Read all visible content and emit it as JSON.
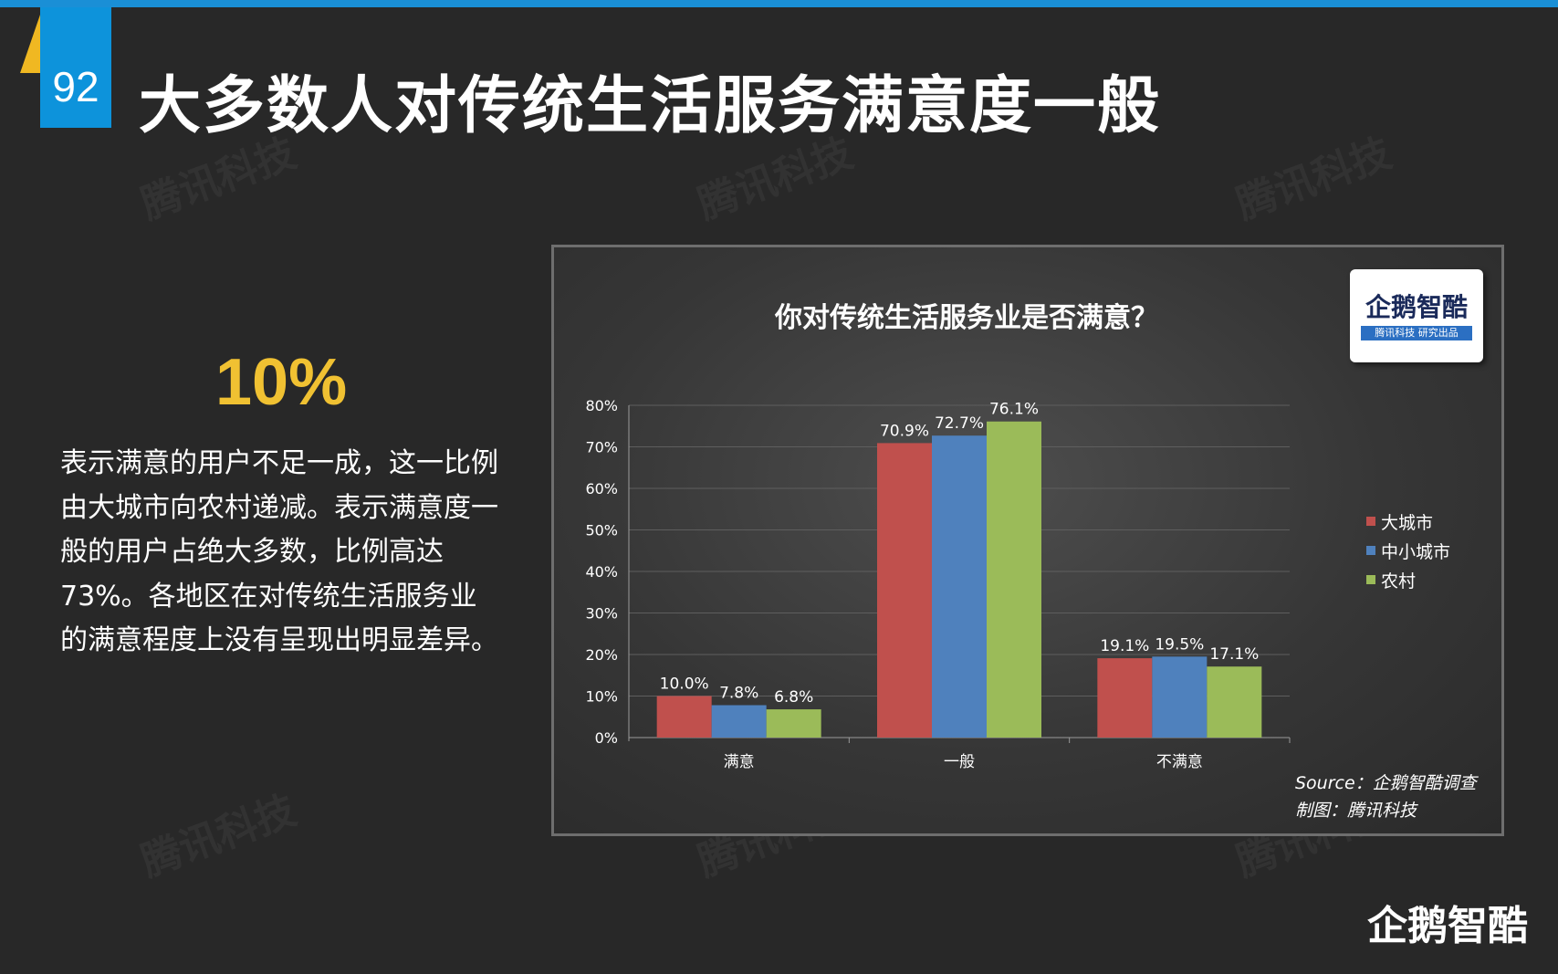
{
  "slide": {
    "number": "92",
    "title": "大多数人对传统生活服务满意度一般",
    "stat": "10%",
    "description": "表示满意的用户不足一成，这一比例由大城市向农村递减。表示满意度一般的用户占绝大多数，比例高达73%。各地区在对传统生活服务业的满意程度上没有呈现出明显差异。",
    "watermark": "腾讯科技",
    "brand": "企鹅智酷"
  },
  "logo": {
    "name": "企鹅智酷",
    "sub": "腾讯科技 研究出品"
  },
  "source": {
    "line1": "Source：企鹅智酷调查",
    "line2": "制图：腾讯科技"
  },
  "colors": {
    "accent_blue": "#0d93db",
    "accent_yellow": "#f0c132"
  },
  "chart_data": {
    "type": "bar",
    "title": "你对传统生活服务业是否满意？",
    "categories": [
      "满意",
      "一般",
      "不满意"
    ],
    "series": [
      {
        "name": "大城市",
        "color": "#c0504d",
        "values": [
          10.0,
          70.9,
          19.1
        ],
        "labels": [
          "10.0%",
          "70.9%",
          "19.1%"
        ]
      },
      {
        "name": "中小城市",
        "color": "#4f81bd",
        "values": [
          7.8,
          72.7,
          19.5
        ],
        "labels": [
          "7.8%",
          "72.7%",
          "19.5%"
        ]
      },
      {
        "name": "农村",
        "color": "#9bbb59",
        "values": [
          6.8,
          76.1,
          17.1
        ],
        "labels": [
          "6.8%",
          "76.1%",
          "17.1%"
        ]
      }
    ],
    "ylim": [
      0,
      80
    ],
    "yticks": [
      "0%",
      "10%",
      "20%",
      "30%",
      "40%",
      "50%",
      "60%",
      "70%",
      "80%"
    ],
    "legend": "right",
    "grid": true
  }
}
